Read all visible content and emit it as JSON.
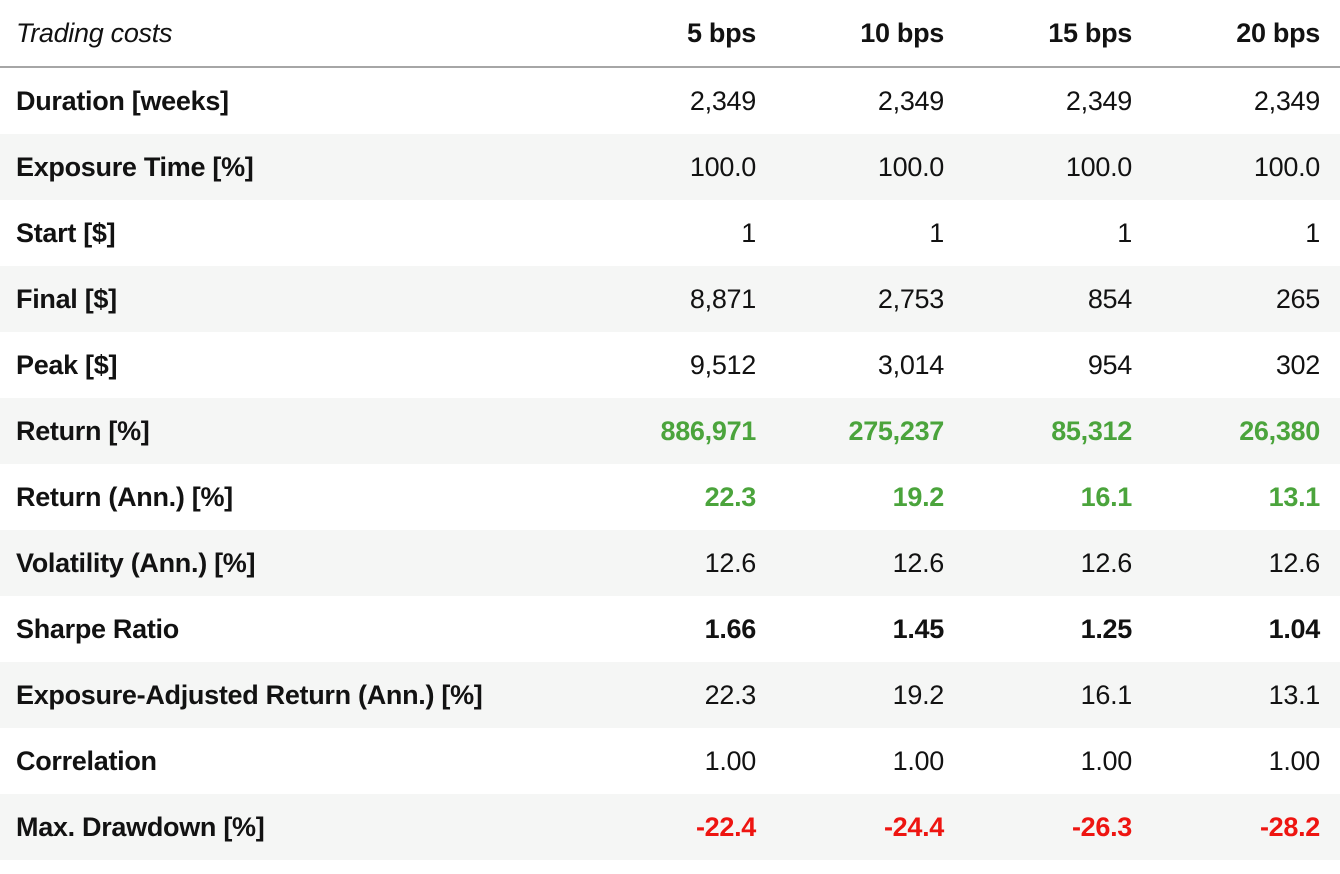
{
  "colors": {
    "positive_green": "#4ba43c",
    "negative_red": "#ee1511",
    "alt_row_background": "#f5f6f5",
    "header_separator": "#a6a6a6",
    "text": "#121212"
  },
  "chart_data": {
    "type": "table",
    "title": "Trading costs",
    "columns": [
      "5 bps",
      "10 bps",
      "15 bps",
      "20 bps"
    ],
    "rows": [
      {
        "label": "Duration [weeks]",
        "values": [
          "2,349",
          "2,349",
          "2,349",
          "2,349"
        ],
        "style": "normal"
      },
      {
        "label": "Exposure Time [%]",
        "values": [
          "100.0",
          "100.0",
          "100.0",
          "100.0"
        ],
        "style": "normal"
      },
      {
        "label": "Start [$]",
        "values": [
          "1",
          "1",
          "1",
          "1"
        ],
        "style": "normal"
      },
      {
        "label": "Final [$]",
        "values": [
          "8,871",
          "2,753",
          "854",
          "265"
        ],
        "style": "normal"
      },
      {
        "label": "Peak [$]",
        "values": [
          "9,512",
          "3,014",
          "954",
          "302"
        ],
        "style": "normal"
      },
      {
        "label": "Return [%]",
        "values": [
          "886,971",
          "275,237",
          "85,312",
          "26,380"
        ],
        "style": "positive"
      },
      {
        "label": "Return (Ann.) [%]",
        "values": [
          "22.3",
          "19.2",
          "16.1",
          "13.1"
        ],
        "style": "positive"
      },
      {
        "label": "Volatility (Ann.) [%]",
        "values": [
          "12.6",
          "12.6",
          "12.6",
          "12.6"
        ],
        "style": "normal"
      },
      {
        "label": "Sharpe Ratio",
        "values": [
          "1.66",
          "1.45",
          "1.25",
          "1.04"
        ],
        "style": "emphasis"
      },
      {
        "label": "Exposure-Adjusted Return (Ann.) [%]",
        "values": [
          "22.3",
          "19.2",
          "16.1",
          "13.1"
        ],
        "style": "normal"
      },
      {
        "label": "Correlation",
        "values": [
          "1.00",
          "1.00",
          "1.00",
          "1.00"
        ],
        "style": "normal"
      },
      {
        "label": "Max. Drawdown [%]",
        "values": [
          "-22.4",
          "-24.4",
          "-26.3",
          "-28.2"
        ],
        "style": "negative"
      }
    ]
  }
}
